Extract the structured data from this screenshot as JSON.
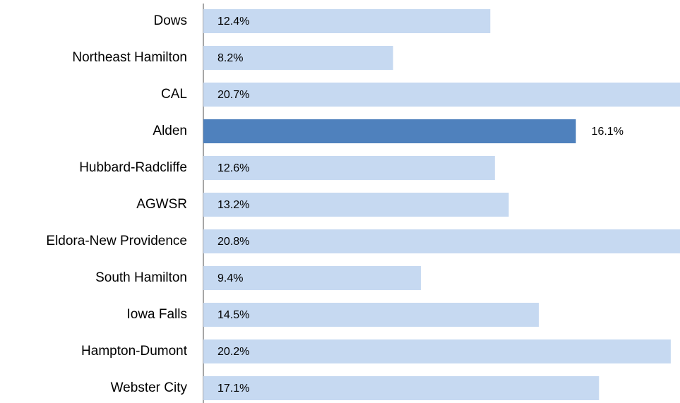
{
  "chart_data": {
    "type": "hbar",
    "categories": [
      "Dows",
      "Northeast Hamilton",
      "CAL",
      "Alden",
      "Hubbard-Radcliffe",
      "AGWSR",
      "Eldora-New Providence",
      "South Hamilton",
      "Iowa Falls",
      "Hampton-Dumont",
      "Webster City"
    ],
    "values": [
      12.4,
      8.2,
      20.7,
      16.1,
      12.6,
      13.2,
      20.8,
      9.4,
      14.5,
      20.2,
      17.1
    ],
    "value_labels": [
      "12.4%",
      "8.2%",
      "20.7%",
      "16.1%",
      "12.6%",
      "13.2%",
      "20.8%",
      "9.4%",
      "14.5%",
      "20.2%",
      "17.1%"
    ],
    "colors": [
      "#c6d9f1",
      "#c6d9f1",
      "#c6d9f1",
      "#4f81bd",
      "#c6d9f1",
      "#c6d9f1",
      "#c6d9f1",
      "#c6d9f1",
      "#c6d9f1",
      "#c6d9f1",
      "#c6d9f1"
    ],
    "xlim": [
      0,
      20.6
    ]
  }
}
